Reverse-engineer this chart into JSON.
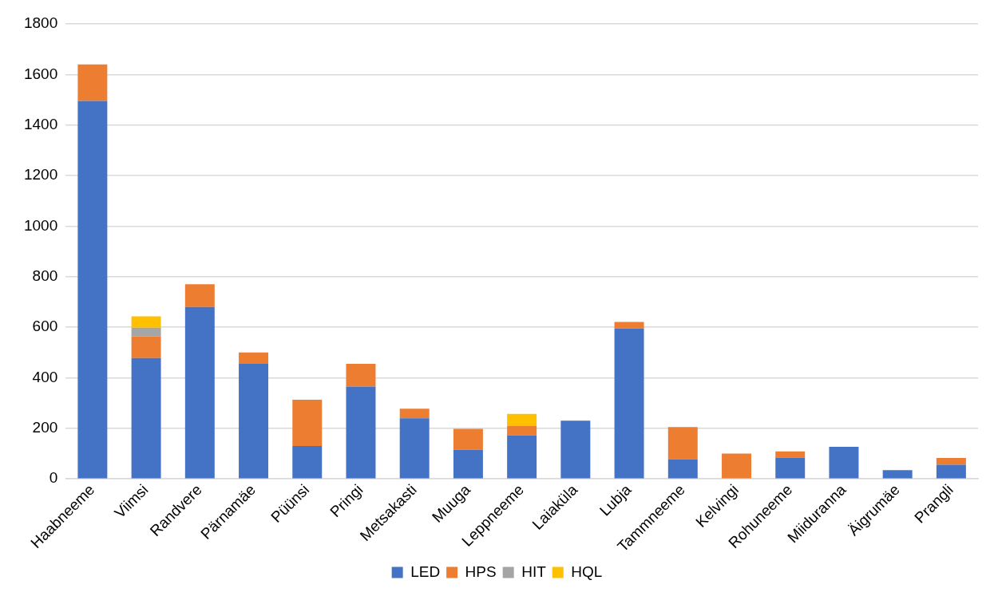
{
  "chart_data": {
    "type": "bar",
    "stacked": true,
    "categories": [
      "Haabneeme",
      "Viimsi",
      "Randvere",
      "Pärnamäe",
      "Püünsi",
      "Pringi",
      "Metsakasti",
      "Muuga",
      "Leppneeme",
      "Laiaküla",
      "Lubja",
      "Tammneeme",
      "Kelvingi",
      "Rohuneeme",
      "Miiduranna",
      "Äigrumäe",
      "Prangli"
    ],
    "series": [
      {
        "name": "LED",
        "color": "#4472c4",
        "values": [
          1495,
          478,
          680,
          455,
          130,
          365,
          240,
          115,
          173,
          230,
          595,
          78,
          0,
          84,
          127,
          35,
          56
        ]
      },
      {
        "name": "HPS",
        "color": "#ed7d31",
        "values": [
          145,
          85,
          90,
          45,
          183,
          90,
          38,
          83,
          36,
          0,
          26,
          127,
          100,
          25,
          0,
          0,
          27
        ]
      },
      {
        "name": "HIT",
        "color": "#a5a5a5",
        "values": [
          0,
          35,
          0,
          0,
          0,
          0,
          0,
          0,
          0,
          0,
          0,
          0,
          0,
          0,
          0,
          0,
          0
        ]
      },
      {
        "name": "HQL",
        "color": "#ffc000",
        "values": [
          0,
          45,
          0,
          0,
          0,
          0,
          0,
          0,
          48,
          0,
          0,
          0,
          0,
          0,
          0,
          0,
          0
        ]
      }
    ],
    "ylim": [
      0,
      1800
    ],
    "yticks": [
      0,
      200,
      400,
      600,
      800,
      1000,
      1200,
      1400,
      1600,
      1800
    ],
    "grid": "y",
    "legend": "bottom"
  }
}
